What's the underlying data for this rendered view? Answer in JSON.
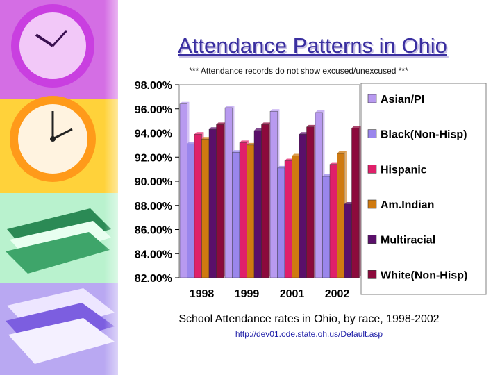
{
  "slide": {
    "title": "Attendance Patterns in Ohio",
    "subtitle": "*** Attendance records do not show excused/unexcused ***",
    "caption": "School Attendance rates in Ohio, by race, 1998-2002",
    "source_link": "http://dev01.ode.state.oh.us/Default.asp"
  },
  "decor": {
    "icons": [
      "purple-clock-icon",
      "orange-clock-icon",
      "green-books-icon",
      "purple-books-icon"
    ]
  },
  "chart_data": {
    "type": "bar",
    "title": "",
    "xlabel": "",
    "ylabel": "",
    "categories": [
      "1998",
      "1999",
      "2001",
      "2002"
    ],
    "ylim": [
      82,
      98
    ],
    "yticks": [
      "98.00%",
      "96.00%",
      "94.00%",
      "92.00%",
      "90.00%",
      "88.00%",
      "86.00%",
      "84.00%",
      "82.00%"
    ],
    "ytick_values": [
      98,
      96,
      94,
      92,
      90,
      88,
      86,
      84,
      82
    ],
    "legend_position": "right",
    "series": [
      {
        "name": "Asian/PI",
        "color": "#b89af0",
        "values": [
          96.4,
          96.1,
          95.8,
          95.7
        ]
      },
      {
        "name": "Black(Non-Hisp)",
        "color": "#9a86ec",
        "values": [
          93.1,
          92.4,
          91.1,
          90.4
        ]
      },
      {
        "name": "Hispanic",
        "color": "#e0206a",
        "values": [
          93.9,
          93.2,
          91.7,
          91.4
        ]
      },
      {
        "name": "Am.Indian",
        "color": "#cf7a10",
        "values": [
          93.5,
          93.0,
          92.1,
          92.3
        ]
      },
      {
        "name": "Multiracial",
        "color": "#5a0f6a",
        "values": [
          94.3,
          94.2,
          93.9,
          88.1
        ]
      },
      {
        "name": "White(Non-Hisp)",
        "color": "#8c0a3c",
        "values": [
          94.7,
          94.7,
          94.5,
          94.4
        ]
      }
    ]
  }
}
